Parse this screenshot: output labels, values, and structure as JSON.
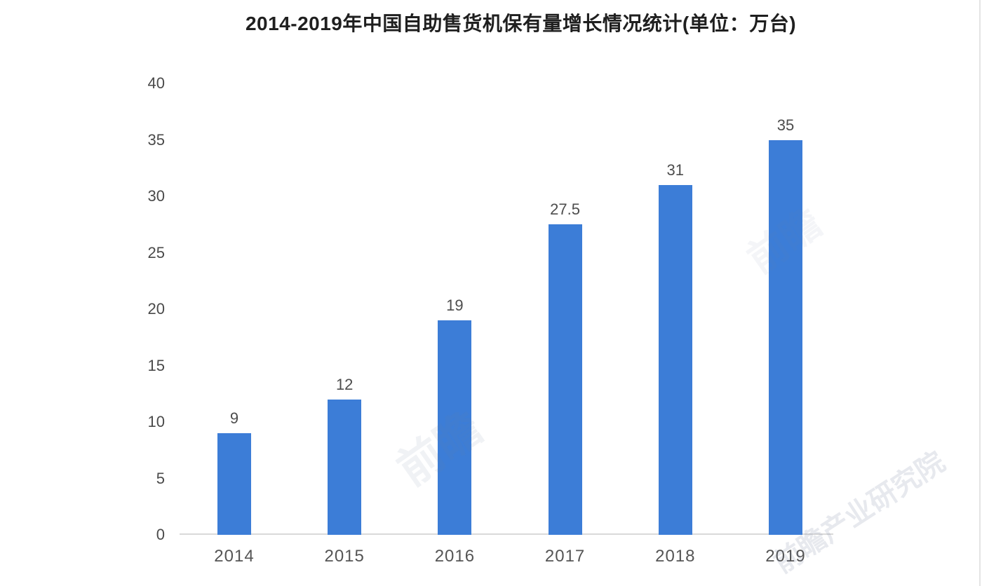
{
  "title": "2014-2019年中国自助售货机保有量增长情况统计(单位：万台)",
  "colors": {
    "bar": "#3c7dd7",
    "axis_line": "#d9d9d9",
    "title_text": "#1f1f1f",
    "y_tick_text": "#4a4a4a",
    "x_tick_text": "#555555",
    "value_label_text": "#4d4d4d",
    "right_edge_line": "#e4e4e4"
  },
  "watermarks": {
    "small": "前瞻",
    "large": "前瞻产业研究院"
  },
  "chart_data": {
    "type": "bar",
    "title": "2014-2019年中国自助售货机保有量增长情况统计(单位：万台)",
    "categories": [
      "2014",
      "2015",
      "2016",
      "2017",
      "2018",
      "2019"
    ],
    "values": [
      9,
      12,
      19,
      27.5,
      31,
      35
    ],
    "data_labels": [
      "9",
      "12",
      "19",
      "27.5",
      "31",
      "35"
    ],
    "series_name": "自助售货机保有量",
    "unit": "万台",
    "xlabel": "",
    "ylabel": "",
    "ylim": [
      0,
      40
    ],
    "yticks": [
      0,
      5,
      10,
      15,
      20,
      25,
      30,
      35,
      40
    ],
    "grid": false,
    "legend": "none",
    "bar_color": "#3c7dd7"
  }
}
